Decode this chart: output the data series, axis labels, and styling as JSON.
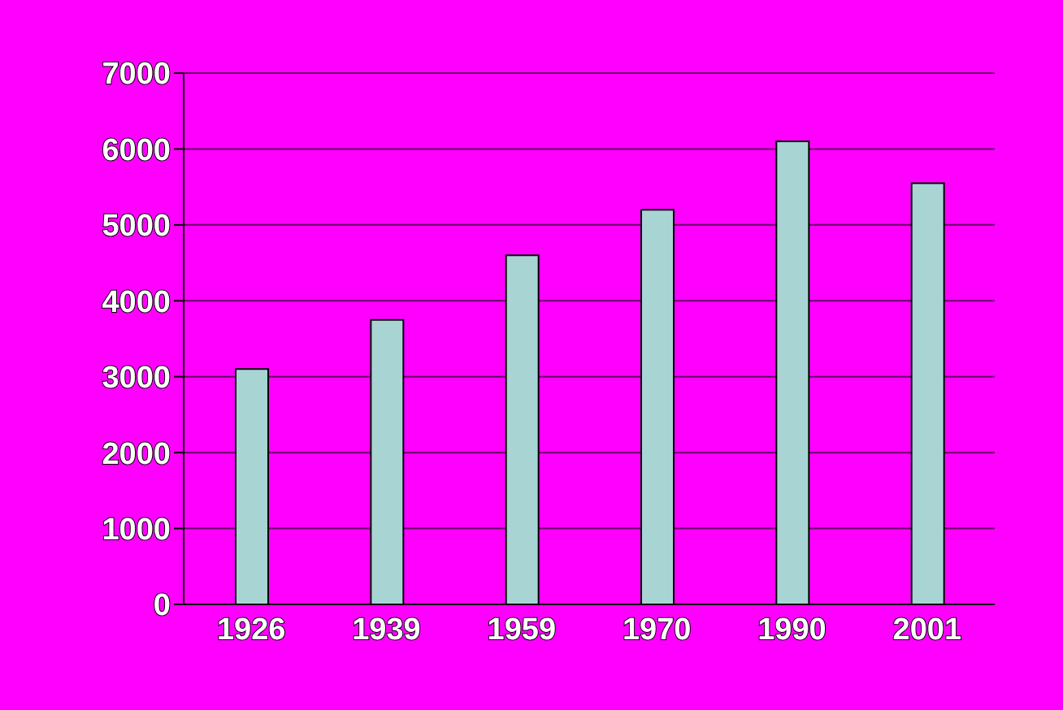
{
  "chart_data": {
    "type": "bar",
    "categories": [
      "1926",
      "1939",
      "1959",
      "1970",
      "1990",
      "2001"
    ],
    "values": [
      3100,
      3750,
      4600,
      5200,
      6100,
      5550
    ],
    "color": "#a8d4d4",
    "ylim": [
      0,
      7000
    ],
    "yticks": [
      0,
      1000,
      2000,
      3000,
      4000,
      5000,
      6000,
      7000
    ],
    "grid": "y"
  }
}
